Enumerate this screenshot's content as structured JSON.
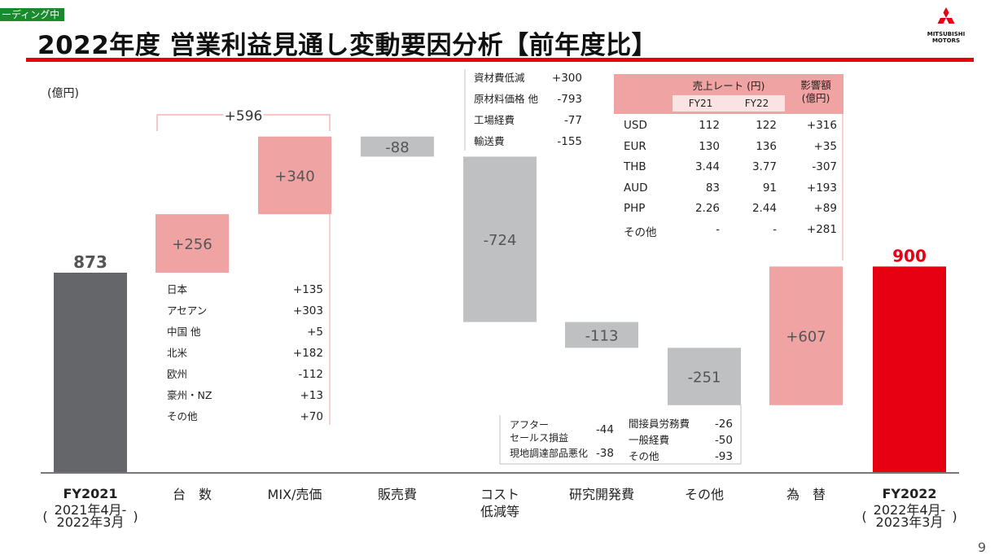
{
  "ticker": "ーディング中",
  "title": "2022年度 営業利益見通し変動要因分析【前年度比】",
  "logo": {
    "line1": "MITSUBISHI",
    "line2": "MOTORS",
    "icon": "three-diamonds-logo"
  },
  "unit": "(億円)",
  "page_number": "9",
  "colors": {
    "accent": "#e60012",
    "positive": "#f0a3a3",
    "negative": "#bfc0c1",
    "fy2021_bar": "#646669",
    "fy2022_bar": "#e60012"
  },
  "chart_data": {
    "type": "bar",
    "subtype": "waterfall",
    "categories": [
      "FY2021",
      "台　数",
      "MIX/売価",
      "販売費",
      "コスト\n低減等",
      "研究開発費",
      "その他",
      "為　替",
      "FY2022"
    ],
    "values": [
      873,
      256,
      340,
      -88,
      -724,
      -113,
      -251,
      607,
      900
    ],
    "value_labels": [
      "873",
      "+256",
      "+340",
      "-88",
      "-724",
      "-113",
      "-251",
      "+607",
      "900"
    ],
    "kinds": [
      "total",
      "delta",
      "delta",
      "delta",
      "delta",
      "delta",
      "delta",
      "delta",
      "total"
    ],
    "fy2021_sub": [
      "2021年4月-",
      "2022年3月"
    ],
    "fy2022_sub": [
      "2022年4月-",
      "2023年3月"
    ],
    "bracket_label": "+596",
    "volume_breakdown": [
      {
        "label": "日本",
        "value": "+135"
      },
      {
        "label": "アセアン",
        "value": "+303"
      },
      {
        "label": "中国 他",
        "value": "+5"
      },
      {
        "label": "北米",
        "value": "+182"
      },
      {
        "label": "欧州",
        "value": "-112"
      },
      {
        "label": "豪州・NZ",
        "value": "+13"
      },
      {
        "label": "その他",
        "value": "+70"
      }
    ],
    "cost_breakdown": [
      {
        "label": "資材費低減",
        "value": "+300"
      },
      {
        "label": "原材料価格 他",
        "value": "-793"
      },
      {
        "label": "工場経費",
        "value": "-77"
      },
      {
        "label": "輸送費",
        "value": "-155"
      }
    ],
    "other_breakdown_left": [
      {
        "label": "アフター\nセールス損益",
        "value": "-44"
      },
      {
        "label": "現地調達部品悪化",
        "value": "-38"
      }
    ],
    "other_breakdown_right": [
      {
        "label": "間接員労務費",
        "value": "-26"
      },
      {
        "label": "一般経費",
        "value": "-50"
      },
      {
        "label": "その他",
        "value": "-93"
      }
    ],
    "fx_table": {
      "header_rate": "売上レート (円)",
      "header_impact": "影響額\n(億円)",
      "col_fy21": "FY21",
      "col_fy22": "FY22",
      "rows": [
        {
          "cur": "USD",
          "fy21": "112",
          "fy22": "122",
          "impact": "+316"
        },
        {
          "cur": "EUR",
          "fy21": "130",
          "fy22": "136",
          "impact": "+35"
        },
        {
          "cur": "THB",
          "fy21": "3.44",
          "fy22": "3.77",
          "impact": "-307"
        },
        {
          "cur": "AUD",
          "fy21": "83",
          "fy22": "91",
          "impact": "+193"
        },
        {
          "cur": "PHP",
          "fy21": "2.26",
          "fy22": "2.44",
          "impact": "+89"
        },
        {
          "cur": "その他",
          "fy21": "-",
          "fy22": "-",
          "impact": "+281"
        }
      ]
    }
  }
}
